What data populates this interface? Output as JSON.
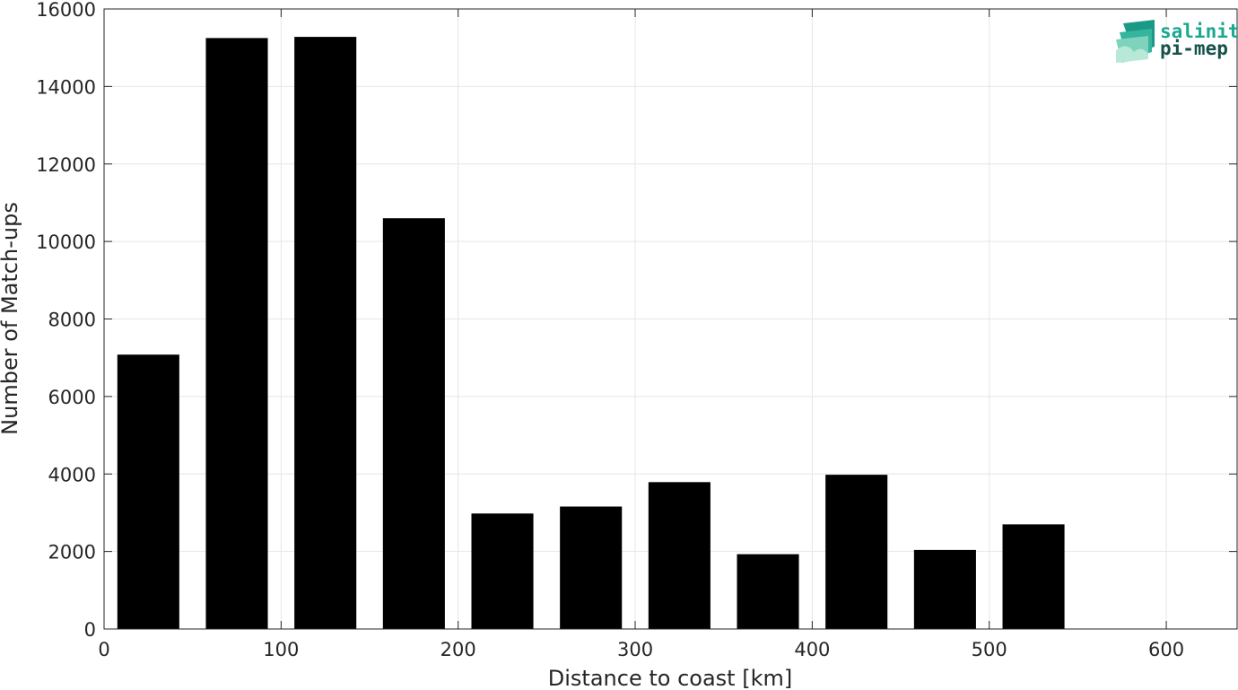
{
  "chart_data": {
    "type": "bar",
    "x": [
      25,
      75,
      125,
      175,
      225,
      275,
      325,
      375,
      425,
      475,
      525,
      575
    ],
    "values": [
      7080,
      15250,
      15280,
      10600,
      2980,
      3160,
      3790,
      1930,
      3980,
      2040,
      2700,
      0
    ],
    "bar_width": 35,
    "xlabel": "Distance to coast [km]",
    "ylabel": "Number of Match-ups",
    "xlim": [
      0,
      640
    ],
    "ylim": [
      0,
      16000
    ],
    "xticks": [
      0,
      100,
      200,
      300,
      400,
      500,
      600
    ],
    "yticks": [
      0,
      2000,
      4000,
      6000,
      8000,
      10000,
      12000,
      14000,
      16000
    ],
    "grid": true,
    "bar_color": "#000000"
  },
  "logo": {
    "line1": "salinity",
    "line2": "pi-mep",
    "color1": "#1aa890",
    "color2": "#15524a"
  }
}
